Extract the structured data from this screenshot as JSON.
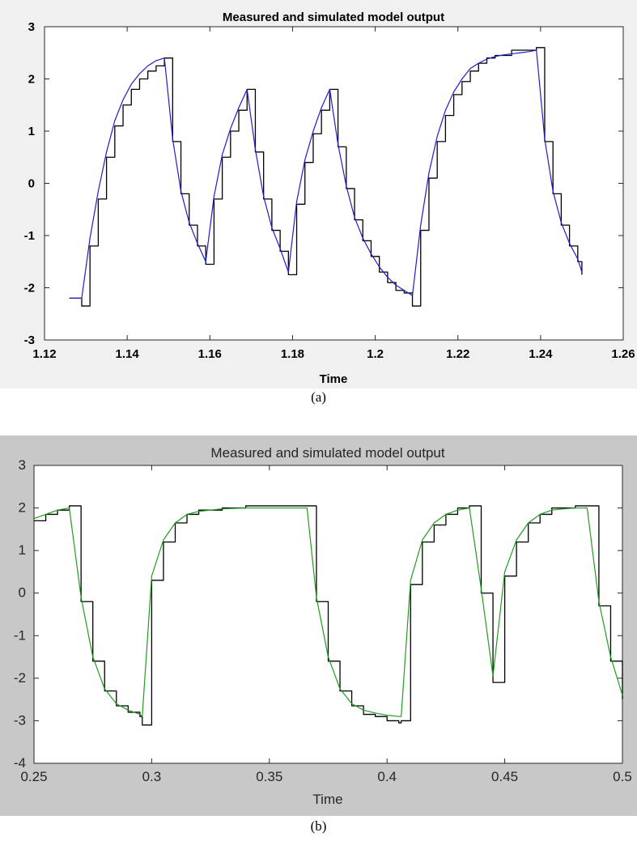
{
  "figures": [
    {
      "caption": "(a)",
      "chart_data": {
        "type": "line",
        "title": "Measured and simulated model output",
        "xlabel": "Time",
        "ylabel": "",
        "xlim": [
          1.12,
          1.26
        ],
        "ylim": [
          -3,
          3
        ],
        "xticks": [
          1.12,
          1.14,
          1.16,
          1.18,
          1.2,
          1.22,
          1.24,
          1.26
        ],
        "xtick_labels": [
          "1.12",
          "1.14",
          "1.16",
          "1.18",
          "1.2",
          "1.22",
          "1.24",
          "1.26"
        ],
        "yticks": [
          3,
          2,
          1,
          0,
          -1,
          -2,
          -3
        ],
        "ytick_labels": [
          "3",
          "2",
          "1",
          "0",
          "-1",
          "-2",
          "-3"
        ],
        "grid": false,
        "legend": "none",
        "series": [
          {
            "role": "measured",
            "color": "#000000",
            "x": [
              1.126,
              1.128,
              1.129,
              1.131,
              1.133,
              1.135,
              1.137,
              1.139,
              1.141,
              1.143,
              1.145,
              1.147,
              1.149,
              1.151,
              1.153,
              1.155,
              1.157,
              1.159,
              1.161,
              1.163,
              1.165,
              1.167,
              1.169,
              1.171,
              1.173,
              1.175,
              1.177,
              1.179,
              1.181,
              1.183,
              1.185,
              1.187,
              1.189,
              1.191,
              1.193,
              1.195,
              1.197,
              1.199,
              1.201,
              1.203,
              1.205,
              1.207,
              1.209,
              1.211,
              1.213,
              1.215,
              1.217,
              1.219,
              1.221,
              1.223,
              1.225,
              1.227,
              1.229,
              1.231,
              1.233,
              1.235,
              1.237,
              1.239,
              1.241,
              1.243,
              1.245,
              1.247,
              1.249,
              1.25
            ],
            "y": [
              -2.2,
              -2.2,
              -2.35,
              -1.2,
              -0.3,
              0.5,
              1.1,
              1.5,
              1.8,
              2.0,
              2.15,
              2.25,
              2.4,
              0.8,
              -0.2,
              -0.8,
              -1.2,
              -1.55,
              -0.3,
              0.5,
              1.0,
              1.4,
              1.8,
              0.6,
              -0.3,
              -0.9,
              -1.3,
              -1.75,
              -0.4,
              0.4,
              0.95,
              1.4,
              1.8,
              0.7,
              -0.1,
              -0.7,
              -1.1,
              -1.4,
              -1.7,
              -1.9,
              -2.05,
              -2.1,
              -2.35,
              -0.9,
              0.1,
              0.8,
              1.3,
              1.7,
              1.95,
              2.15,
              2.3,
              2.4,
              2.45,
              2.45,
              2.55,
              2.55,
              2.55,
              2.6,
              0.8,
              -0.2,
              -0.8,
              -1.2,
              -1.5,
              -1.75
            ]
          },
          {
            "role": "simulated",
            "color": "#1d1dd0",
            "x": [
              1.126,
              1.128,
              1.129,
              1.131,
              1.133,
              1.135,
              1.137,
              1.139,
              1.141,
              1.143,
              1.145,
              1.147,
              1.149,
              1.151,
              1.153,
              1.155,
              1.157,
              1.159,
              1.161,
              1.163,
              1.165,
              1.167,
              1.169,
              1.171,
              1.173,
              1.175,
              1.177,
              1.179,
              1.181,
              1.183,
              1.185,
              1.187,
              1.189,
              1.191,
              1.193,
              1.195,
              1.197,
              1.199,
              1.201,
              1.203,
              1.205,
              1.207,
              1.209,
              1.211,
              1.213,
              1.215,
              1.217,
              1.219,
              1.221,
              1.223,
              1.225,
              1.227,
              1.229,
              1.231,
              1.233,
              1.235,
              1.237,
              1.239,
              1.241,
              1.243,
              1.245,
              1.247,
              1.249,
              1.25
            ],
            "y": [
              -2.2,
              -2.2,
              -2.2,
              -1.05,
              -0.15,
              0.6,
              1.2,
              1.6,
              1.9,
              2.1,
              2.25,
              2.35,
              2.4,
              0.85,
              -0.15,
              -0.75,
              -1.15,
              -1.5,
              -0.25,
              0.55,
              1.05,
              1.45,
              1.8,
              0.65,
              -0.25,
              -0.85,
              -1.25,
              -1.7,
              -0.35,
              0.45,
              1.0,
              1.45,
              1.8,
              0.75,
              -0.05,
              -0.65,
              -1.05,
              -1.35,
              -1.6,
              -1.8,
              -1.95,
              -2.05,
              -2.15,
              -0.8,
              0.2,
              0.9,
              1.4,
              1.75,
              2.0,
              2.2,
              2.3,
              2.38,
              2.43,
              2.46,
              2.48,
              2.5,
              2.52,
              2.55,
              0.85,
              -0.15,
              -0.75,
              -1.15,
              -1.45,
              -1.7
            ]
          }
        ]
      }
    },
    {
      "caption": "(b)",
      "chart_data": {
        "type": "line",
        "title": "Measured and simulated model output",
        "xlabel": "Time",
        "ylabel": "",
        "xlim": [
          0.25,
          0.5
        ],
        "ylim": [
          -4,
          3
        ],
        "xticks": [
          0.25,
          0.3,
          0.35,
          0.4,
          0.45,
          0.5
        ],
        "xtick_labels": [
          "0.25",
          "0.3",
          "0.35",
          "0.4",
          "0.45",
          "0.5"
        ],
        "yticks": [
          3,
          2,
          1,
          0,
          -1,
          -2,
          -3,
          -4
        ],
        "ytick_labels": [
          "3",
          "2",
          "1",
          "0",
          "-1",
          "-2",
          "-3",
          "-4"
        ],
        "grid": false,
        "legend": "none",
        "series": [
          {
            "role": "measured",
            "color": "#000000",
            "x": [
              0.25,
              0.255,
              0.26,
              0.265,
              0.27,
              0.275,
              0.28,
              0.285,
              0.29,
              0.295,
              0.296,
              0.3,
              0.305,
              0.31,
              0.315,
              0.32,
              0.33,
              0.34,
              0.35,
              0.36,
              0.366,
              0.37,
              0.375,
              0.38,
              0.385,
              0.39,
              0.395,
              0.4,
              0.405,
              0.406,
              0.41,
              0.415,
              0.42,
              0.425,
              0.43,
              0.435,
              0.44,
              0.445,
              0.45,
              0.455,
              0.46,
              0.465,
              0.47,
              0.475,
              0.48,
              0.485,
              0.49,
              0.495,
              0.5
            ],
            "y": [
              1.7,
              1.85,
              1.95,
              2.05,
              -0.2,
              -1.6,
              -2.3,
              -2.65,
              -2.8,
              -2.9,
              -3.1,
              0.3,
              1.2,
              1.65,
              1.85,
              1.95,
              2.0,
              2.05,
              2.05,
              2.05,
              2.05,
              -0.2,
              -1.6,
              -2.3,
              -2.65,
              -2.85,
              -2.9,
              -3.0,
              -3.05,
              -3.0,
              0.2,
              1.2,
              1.6,
              1.85,
              2.0,
              2.05,
              0.0,
              -2.1,
              0.4,
              1.2,
              1.65,
              1.85,
              2.0,
              2.0,
              2.05,
              2.05,
              -0.3,
              -1.6,
              -2.5
            ]
          },
          {
            "role": "simulated",
            "color": "#1f9e1f",
            "x": [
              0.25,
              0.255,
              0.26,
              0.265,
              0.27,
              0.275,
              0.28,
              0.285,
              0.29,
              0.295,
              0.296,
              0.3,
              0.305,
              0.31,
              0.315,
              0.32,
              0.33,
              0.34,
              0.35,
              0.36,
              0.366,
              0.37,
              0.375,
              0.38,
              0.385,
              0.39,
              0.395,
              0.4,
              0.405,
              0.406,
              0.41,
              0.415,
              0.42,
              0.425,
              0.43,
              0.435,
              0.44,
              0.445,
              0.45,
              0.455,
              0.46,
              0.465,
              0.47,
              0.475,
              0.48,
              0.485,
              0.49,
              0.495,
              0.5
            ],
            "y": [
              1.75,
              1.85,
              1.95,
              2.0,
              -0.1,
              -1.5,
              -2.25,
              -2.6,
              -2.75,
              -2.85,
              -2.9,
              0.4,
              1.25,
              1.65,
              1.85,
              1.92,
              1.98,
              2.0,
              2.0,
              2.0,
              2.0,
              -0.1,
              -1.5,
              -2.25,
              -2.6,
              -2.75,
              -2.82,
              -2.87,
              -2.9,
              -2.9,
              0.3,
              1.25,
              1.65,
              1.85,
              1.95,
              2.0,
              0.1,
              -1.95,
              0.5,
              1.25,
              1.65,
              1.85,
              1.95,
              1.98,
              2.0,
              2.0,
              -0.2,
              -1.5,
              -2.4
            ]
          }
        ]
      }
    }
  ]
}
